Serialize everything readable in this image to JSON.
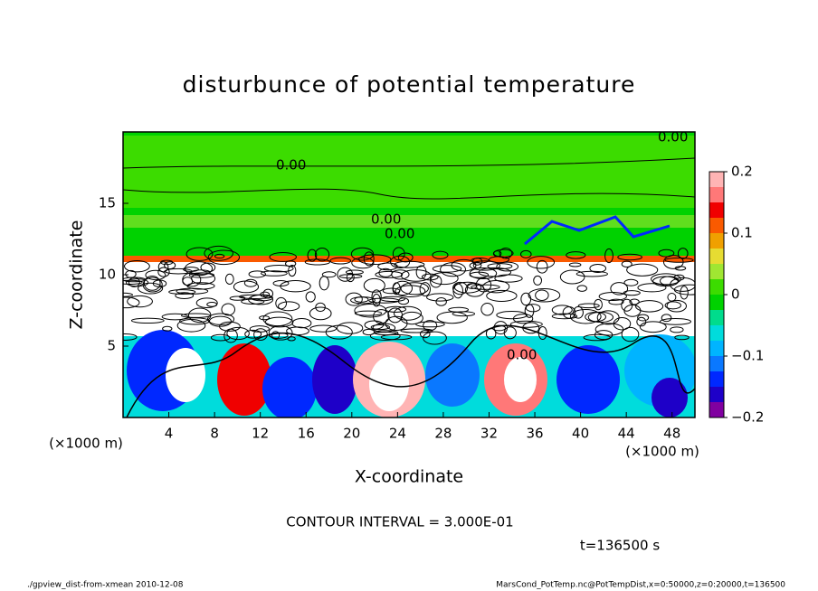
{
  "chart_data": {
    "type": "heatmap",
    "title": "disturbunce of potential temperature",
    "x_label": "X-coordinate",
    "y_label": "Z-coordinate",
    "x_unit": "(×1000 m)",
    "y_unit": "(×1000 m)",
    "xlim": [
      0,
      50
    ],
    "xticks": [
      4,
      8,
      12,
      16,
      20,
      24,
      28,
      32,
      36,
      40,
      44,
      48
    ],
    "ylim": [
      0,
      20
    ],
    "yticks": [
      5,
      10,
      15
    ],
    "colorbar": {
      "lim": [
        -0.2,
        0.2
      ],
      "ticks": [
        {
          "value": -0.2,
          "label": "−0.2"
        },
        {
          "value": -0.1,
          "label": "−0.1"
        },
        0,
        0.1,
        0.2
      ],
      "colors": [
        "#8000a0",
        "#1e00c8",
        "#0028ff",
        "#0a78ff",
        "#00b4ff",
        "#00dcdc",
        "#00dc8c",
        "#00d200",
        "#3cdc00",
        "#a0e632",
        "#e6dc32",
        "#f0a000",
        "#fa5a00",
        "#f00000",
        "#ff7878",
        "#ffb4b4"
      ]
    },
    "contour_labels": [
      "0.00",
      "0.00",
      "0.00",
      "0.00",
      "0.00"
    ],
    "contour_interval": "CONTOUR INTERVAL = 3.000E-01",
    "time_label": "t=136500 s",
    "footer_left": "./gpview_dist-from-xmean  2010-12-08",
    "footer_right": "MarsCond_PotTemp.nc@PotTempDist,x=0:50000,z=0:20000,t=136500"
  }
}
